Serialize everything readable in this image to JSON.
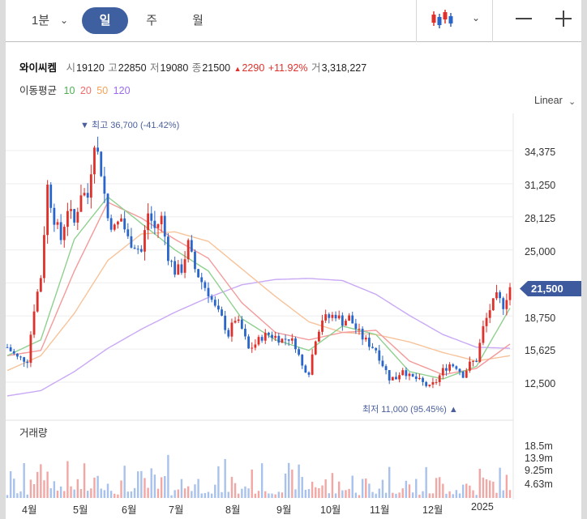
{
  "toolbar": {
    "timeframe_minute": "1분",
    "timeframe_day": "일",
    "timeframe_week": "주",
    "timeframe_month": "월"
  },
  "stock": {
    "name": "와이씨켐",
    "open_label": "시",
    "open": "19120",
    "high_label": "고",
    "high": "22850",
    "low_label": "저",
    "low": "19080",
    "close_label": "종",
    "close": "21500",
    "change_arrow": "▲",
    "change": "2290",
    "change_pct": "+11.92%",
    "volume_label": "거",
    "volume": "3,318,227"
  },
  "moving_averages": {
    "label": "이동평균",
    "items": [
      {
        "period": "10",
        "color": "#4caf50"
      },
      {
        "period": "20",
        "color": "#f06b6b"
      },
      {
        "period": "50",
        "color": "#f5a35a"
      },
      {
        "period": "120",
        "color": "#9a6bf0"
      }
    ]
  },
  "scale_mode": "Linear",
  "current_price_badge": "21,500",
  "annotations": {
    "high": "▼ 최고 36,700 (-41.42%)",
    "low": "최저 11,000 (95.45%) ▲"
  },
  "volume_title": "거래량",
  "colors": {
    "up": "#e0302a",
    "down": "#2a66c9",
    "accent": "#3e5fa0",
    "badge": "#3e5a9e"
  },
  "chart_data": {
    "type": "candlestick",
    "y_axis_ticks": [
      "34,375",
      "31,250",
      "28,125",
      "25,000",
      "18,750",
      "15,625",
      "12,500"
    ],
    "ylim": [
      10000,
      38000
    ],
    "volume_axis_ticks": [
      "18.5m",
      "13.9m",
      "9.25m",
      "4.63m"
    ],
    "x_axis_ticks": [
      "4월",
      "5월",
      "6월",
      "7월",
      "8월",
      "9월",
      "10월",
      "11월",
      "12월",
      "2025"
    ],
    "price_path": [
      [
        0,
        15800
      ],
      [
        3,
        14800
      ],
      [
        6,
        14600
      ],
      [
        8,
        19500
      ],
      [
        10,
        22500
      ],
      [
        12,
        31000
      ],
      [
        14,
        28000
      ],
      [
        16,
        26000
      ],
      [
        18,
        29000
      ],
      [
        20,
        27500
      ],
      [
        22,
        30500
      ],
      [
        24,
        30000
      ],
      [
        26,
        35500
      ],
      [
        28,
        32500
      ],
      [
        30,
        28000
      ],
      [
        32,
        27000
      ],
      [
        34,
        28000
      ],
      [
        36,
        26000
      ],
      [
        38,
        25500
      ],
      [
        40,
        24800
      ],
      [
        42,
        28500
      ],
      [
        44,
        27000
      ],
      [
        46,
        28000
      ],
      [
        48,
        24500
      ],
      [
        50,
        23000
      ],
      [
        52,
        23200
      ],
      [
        54,
        25500
      ],
      [
        56,
        23200
      ],
      [
        58,
        22000
      ],
      [
        60,
        21000
      ],
      [
        62,
        19500
      ],
      [
        64,
        18500
      ],
      [
        66,
        17000
      ],
      [
        68,
        18500
      ],
      [
        70,
        17500
      ],
      [
        72,
        15600
      ],
      [
        74,
        16100
      ],
      [
        76,
        16800
      ],
      [
        78,
        17000
      ],
      [
        80,
        16800
      ],
      [
        82,
        16500
      ],
      [
        84,
        16700
      ],
      [
        86,
        16000
      ],
      [
        88,
        14000
      ],
      [
        90,
        13500
      ],
      [
        92,
        16700
      ],
      [
        94,
        18500
      ],
      [
        96,
        18600
      ],
      [
        98,
        18900
      ],
      [
        100,
        18200
      ],
      [
        102,
        18600
      ],
      [
        104,
        17600
      ],
      [
        106,
        16700
      ],
      [
        108,
        16100
      ],
      [
        110,
        15600
      ],
      [
        112,
        14200
      ],
      [
        114,
        12900
      ],
      [
        116,
        12900
      ],
      [
        118,
        13800
      ],
      [
        120,
        13000
      ],
      [
        122,
        12800
      ],
      [
        124,
        12400
      ],
      [
        126,
        12000
      ],
      [
        128,
        12600
      ],
      [
        130,
        13600
      ],
      [
        132,
        14200
      ],
      [
        134,
        14000
      ],
      [
        136,
        13200
      ],
      [
        138,
        14200
      ],
      [
        140,
        14600
      ],
      [
        142,
        17600
      ],
      [
        144,
        19400
      ],
      [
        146,
        20500
      ],
      [
        148,
        19800
      ],
      [
        150,
        21500
      ]
    ],
    "moving_average_10": [
      [
        0,
        15000
      ],
      [
        10,
        16500
      ],
      [
        20,
        26000
      ],
      [
        30,
        30000
      ],
      [
        40,
        27500
      ],
      [
        50,
        25000
      ],
      [
        60,
        23000
      ],
      [
        70,
        18500
      ],
      [
        80,
        16500
      ],
      [
        90,
        15500
      ],
      [
        100,
        17800
      ],
      [
        110,
        17000
      ],
      [
        120,
        13500
      ],
      [
        130,
        12800
      ],
      [
        140,
        14000
      ],
      [
        150,
        19500
      ]
    ],
    "moving_average_20": [
      [
        0,
        15000
      ],
      [
        10,
        15500
      ],
      [
        20,
        23000
      ],
      [
        30,
        29500
      ],
      [
        40,
        28000
      ],
      [
        50,
        26000
      ],
      [
        60,
        24200
      ],
      [
        70,
        20000
      ],
      [
        80,
        17200
      ],
      [
        90,
        16500
      ],
      [
        100,
        17200
      ],
      [
        110,
        17400
      ],
      [
        120,
        14500
      ],
      [
        130,
        13200
      ],
      [
        140,
        13800
      ],
      [
        150,
        16100
      ]
    ],
    "moving_average_50": [
      [
        0,
        13600
      ],
      [
        10,
        15000
      ],
      [
        20,
        19000
      ],
      [
        30,
        24000
      ],
      [
        40,
        26500
      ],
      [
        50,
        26700
      ],
      [
        60,
        25800
      ],
      [
        70,
        23200
      ],
      [
        80,
        20600
      ],
      [
        90,
        18200
      ],
      [
        100,
        17200
      ],
      [
        110,
        17000
      ],
      [
        120,
        16300
      ],
      [
        130,
        15300
      ],
      [
        140,
        14500
      ],
      [
        150,
        15000
      ]
    ],
    "moving_average_120": [
      [
        0,
        11200
      ],
      [
        10,
        11700
      ],
      [
        20,
        13500
      ],
      [
        30,
        15700
      ],
      [
        40,
        17500
      ],
      [
        50,
        19100
      ],
      [
        60,
        20500
      ],
      [
        70,
        21700
      ],
      [
        80,
        22200
      ],
      [
        90,
        22300
      ],
      [
        100,
        22100
      ],
      [
        110,
        20800
      ],
      [
        120,
        18800
      ],
      [
        130,
        17000
      ],
      [
        140,
        15800
      ],
      [
        150,
        15700
      ]
    ]
  }
}
